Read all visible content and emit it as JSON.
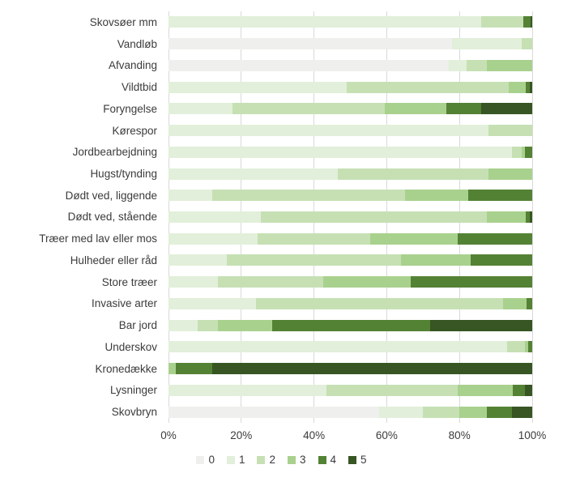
{
  "chart_data": {
    "type": "bar",
    "orientation": "horizontal",
    "stacked": true,
    "unit": "percent",
    "title": "",
    "xlabel": "",
    "ylabel": "",
    "xlim": [
      0,
      100
    ],
    "grid": true,
    "gridline_color": "#d9d9d9",
    "x_ticks": [
      "0%",
      "20%",
      "40%",
      "60%",
      "80%",
      "100%"
    ],
    "x_tick_values": [
      0,
      20,
      40,
      60,
      80,
      100
    ],
    "categories": [
      "Skovsøer mm",
      "Vandløb",
      "Afvanding",
      "Vildtbid",
      "Foryngelse",
      "Kørespor",
      "Jordbearbejdning",
      "Hugst/tynding",
      "Dødt ved, liggende",
      "Dødt ved, stående",
      "Træer med lav eller mos",
      "Hulheder eller råd",
      "Store træer",
      "Invasive arter",
      "Bar jord",
      "Underskov",
      "Kronedække",
      "Lysninger",
      "Skovbryn"
    ],
    "series": [
      {
        "name": "0",
        "color": "#efefed",
        "values": [
          0,
          78,
          77,
          0,
          0,
          0,
          0,
          0,
          0,
          0,
          0,
          0,
          0,
          0,
          0,
          0,
          0,
          0,
          58
        ]
      },
      {
        "name": "1",
        "color": "#e2efda",
        "values": [
          86,
          19,
          5,
          49,
          17.5,
          88,
          94.5,
          46.5,
          12,
          25.5,
          24.5,
          16,
          13.5,
          24,
          8,
          93,
          0,
          43.5,
          12
        ]
      },
      {
        "name": "2",
        "color": "#c6e0b4",
        "values": [
          11.5,
          3,
          5.5,
          44.5,
          42,
          12,
          2.5,
          41.5,
          53,
          62,
          31,
          48,
          29,
          68,
          5.5,
          5,
          0,
          36,
          10
        ]
      },
      {
        "name": "3",
        "color": "#a9d18e",
        "values": [
          0,
          0,
          12.5,
          4.7,
          17,
          0,
          1,
          12,
          17.5,
          10.7,
          24,
          19,
          24,
          6.5,
          15,
          1,
          2,
          15.2,
          7.5
        ]
      },
      {
        "name": "4",
        "color": "#548235",
        "values": [
          2,
          0,
          0,
          1.1,
          9.5,
          0,
          2,
          0,
          17.5,
          1.1,
          20.5,
          17,
          33.5,
          1.5,
          43.5,
          1,
          10,
          3.3,
          7
        ]
      },
      {
        "name": "5",
        "color": "#375623",
        "values": [
          0.5,
          0,
          0,
          0.7,
          14,
          0,
          0,
          0,
          0,
          0.7,
          0,
          0,
          0,
          0,
          28,
          0,
          88,
          2,
          5.5
        ]
      }
    ],
    "legend": {
      "position": "bottom",
      "labels": [
        "0",
        "1",
        "2",
        "3",
        "4",
        "5"
      ]
    }
  }
}
